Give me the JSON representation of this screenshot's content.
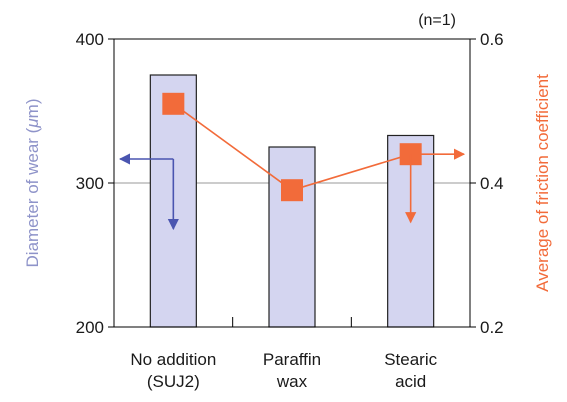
{
  "chart_data": {
    "type": "bar",
    "annotation": "(n=1)",
    "categories": [
      [
        "No addition",
        "(SUJ2)"
      ],
      [
        "Paraffin",
        "wax"
      ],
      [
        "Stearic",
        "acid"
      ]
    ],
    "y_left": {
      "label_prefix": "Diameter of wear (",
      "label_unit_symbol": "μ",
      "label_suffix": "m)",
      "range": [
        200,
        400
      ],
      "ticks": [
        "200",
        "300",
        "400"
      ],
      "color": "#8e93c9"
    },
    "y_right": {
      "label": "Average of friction coefficient",
      "range": [
        0.2,
        0.6
      ],
      "ticks": [
        "0.2",
        "0.4",
        "0.6"
      ],
      "color": "#f26b3a"
    },
    "series": [
      {
        "type": "bar",
        "axis": "left",
        "values": [
          375,
          325,
          333
        ],
        "fill": "#d4d5f0",
        "stroke": "#222222"
      },
      {
        "type": "line",
        "axis": "right",
        "values": [
          0.51,
          0.39,
          0.44
        ],
        "color": "#f26b3a",
        "marker": "square"
      }
    ],
    "gridline_left_value": 300,
    "axis_arrows": {
      "left_color": "#4a55b0",
      "right_color": "#f26b3a"
    }
  }
}
